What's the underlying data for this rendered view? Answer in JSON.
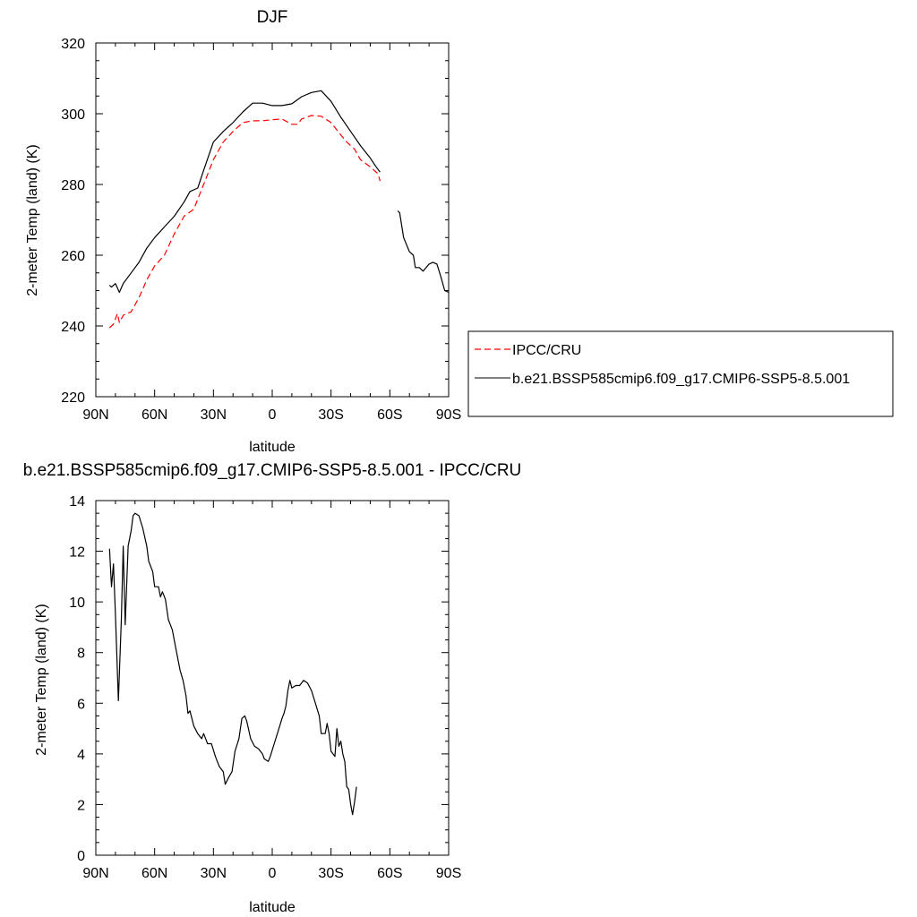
{
  "chart_data": [
    {
      "type": "line",
      "title": "DJF",
      "xlabel": "latitude",
      "ylabel": "2-meter Temp (land) (K)",
      "xlim": [
        90,
        -90
      ],
      "ylim": [
        220,
        320
      ],
      "xticks": [
        90,
        60,
        30,
        0,
        -30,
        -60,
        -90
      ],
      "xtick_labels": [
        "90N",
        "60N",
        "30N",
        "0",
        "30S",
        "60S",
        "90S"
      ],
      "yticks": [
        220,
        240,
        260,
        280,
        300,
        320
      ],
      "ytick_labels": [
        "220",
        "240",
        "260",
        "280",
        "300",
        "320"
      ],
      "legend": "right",
      "series": [
        {
          "name": "IPCC/CRU",
          "color": "#ff0000",
          "dash": "dashed",
          "segments": [
            [
              [
                83,
                239.5
              ],
              [
                81,
                240.5
              ],
              [
                79,
                243.5
              ],
              [
                78,
                241
              ],
              [
                76,
                243
              ],
              [
                72,
                244
              ],
              [
                68,
                248
              ],
              [
                64,
                253
              ],
              [
                60,
                257
              ],
              [
                55,
                260
              ],
              [
                50,
                266
              ],
              [
                45,
                271
              ],
              [
                40,
                273
              ],
              [
                35,
                280
              ],
              [
                30,
                287
              ],
              [
                25,
                292
              ],
              [
                20,
                295
              ],
              [
                15,
                297.5
              ],
              [
                10,
                298
              ],
              [
                5,
                298
              ],
              [
                0,
                298.3
              ],
              [
                -5,
                298.5
              ],
              [
                -10,
                297
              ],
              [
                -13,
                297
              ],
              [
                -15,
                298.5
              ],
              [
                -20,
                299.5
              ],
              [
                -25,
                299.3
              ],
              [
                -30,
                297.5
              ],
              [
                -35,
                294
              ],
              [
                -38,
                292
              ],
              [
                -42,
                290
              ],
              [
                -45,
                287
              ],
              [
                -50,
                285
              ],
              [
                -54,
                283
              ],
              [
                -55,
                281
              ]
            ]
          ]
        },
        {
          "name": "b.e21.BSSP585cmip6.f09_g17.CMIP6-SSP5-8.5.001",
          "color": "#000000",
          "dash": "solid",
          "segments": [
            [
              [
                83,
                251.5
              ],
              [
                82,
                251
              ],
              [
                80,
                252
              ],
              [
                78,
                249.5
              ],
              [
                76,
                252
              ],
              [
                72,
                255
              ],
              [
                68,
                258
              ],
              [
                64,
                262
              ],
              [
                60,
                265
              ],
              [
                55,
                268
              ],
              [
                50,
                271
              ],
              [
                45,
                275
              ],
              [
                42,
                278
              ],
              [
                38,
                279
              ],
              [
                35,
                284
              ],
              [
                30,
                292
              ],
              [
                25,
                295
              ],
              [
                20,
                297.5
              ],
              [
                15,
                300.5
              ],
              [
                10,
                303
              ],
              [
                5,
                303
              ],
              [
                0,
                302.3
              ],
              [
                -5,
                302.3
              ],
              [
                -10,
                302.8
              ],
              [
                -15,
                304.8
              ],
              [
                -20,
                306
              ],
              [
                -25,
                306.5
              ],
              [
                -30,
                303.5
              ],
              [
                -35,
                299
              ],
              [
                -40,
                295
              ],
              [
                -45,
                291
              ],
              [
                -50,
                287.5
              ],
              [
                -53,
                285
              ],
              [
                -55,
                283.5
              ]
            ],
            [
              [
                -64,
                272.5
              ],
              [
                -65,
                272
              ],
              [
                -67,
                265
              ],
              [
                -70,
                261
              ],
              [
                -72,
                260
              ],
              [
                -73,
                256.5
              ],
              [
                -75,
                256.5
              ],
              [
                -77,
                255.5
              ],
              [
                -80,
                257.5
              ],
              [
                -82,
                258
              ],
              [
                -84,
                257.5
              ],
              [
                -86,
                254
              ],
              [
                -88,
                250
              ],
              [
                -90,
                249.5
              ]
            ]
          ]
        }
      ]
    },
    {
      "type": "line",
      "title": "b.e21.BSSP585cmip6.f09_g17.CMIP6-SSP5-8.5.001 - IPCC/CRU",
      "xlabel": "latitude",
      "ylabel": "2-meter Temp (land) (K)",
      "xlim": [
        90,
        -90
      ],
      "ylim": [
        0,
        14
      ],
      "xticks": [
        90,
        60,
        30,
        0,
        -30,
        -60,
        -90
      ],
      "xtick_labels": [
        "90N",
        "60N",
        "30N",
        "0",
        "30S",
        "60S",
        "90S"
      ],
      "yticks": [
        0,
        2,
        4,
        6,
        8,
        10,
        12,
        14
      ],
      "ytick_labels": [
        "0",
        "2",
        "4",
        "6",
        "8",
        "10",
        "12",
        "14"
      ],
      "series": [
        {
          "color": "#000000",
          "dash": "solid",
          "segments": [
            [
              [
                83,
                12.1
              ],
              [
                82,
                10.6
              ],
              [
                81,
                11.5
              ],
              [
                80,
                9.5
              ],
              [
                78.5,
                6.1
              ],
              [
                77,
                9.3
              ],
              [
                76,
                12.2
              ],
              [
                75,
                9.1
              ],
              [
                73.5,
                12.2
              ],
              [
                72,
                12.8
              ],
              [
                71,
                13.4
              ],
              [
                70,
                13.5
              ],
              [
                68,
                13.4
              ],
              [
                66,
                12.9
              ],
              [
                64,
                12.2
              ],
              [
                63,
                11.6
              ],
              [
                61,
                11.2
              ],
              [
                60,
                10.6
              ],
              [
                58,
                10.6
              ],
              [
                57,
                10.2
              ],
              [
                56,
                10.4
              ],
              [
                54.5,
                10.1
              ],
              [
                53,
                9.3
              ],
              [
                51,
                8.9
              ],
              [
                49,
                8.1
              ],
              [
                47,
                7.3
              ],
              [
                45.5,
                6.9
              ],
              [
                44,
                6.3
              ],
              [
                43,
                5.6
              ],
              [
                42,
                5.7
              ],
              [
                40,
                5.1
              ],
              [
                38,
                4.8
              ],
              [
                36,
                4.6
              ],
              [
                35,
                4.8
              ],
              [
                33,
                4.4
              ],
              [
                31,
                4.4
              ],
              [
                29,
                3.9
              ],
              [
                27,
                3.5
              ],
              [
                25,
                3.3
              ],
              [
                24,
                2.8
              ],
              [
                22,
                3.1
              ],
              [
                20.5,
                3.3
              ],
              [
                19,
                4.1
              ],
              [
                17,
                4.6
              ],
              [
                15.5,
                5.4
              ],
              [
                14,
                5.5
              ],
              [
                13,
                5.3
              ],
              [
                11,
                4.6
              ],
              [
                9,
                4.3
              ],
              [
                7,
                4.2
              ],
              [
                5,
                4.0
              ],
              [
                4,
                3.8
              ],
              [
                2,
                3.7
              ],
              [
                1,
                3.9
              ],
              [
                -1,
                4.4
              ],
              [
                -3,
                4.9
              ],
              [
                -5,
                5.4
              ],
              [
                -6,
                5.6
              ],
              [
                -7,
                5.9
              ],
              [
                -8,
                6.5
              ],
              [
                -9,
                6.9
              ],
              [
                -10,
                6.6
              ],
              [
                -12,
                6.7
              ],
              [
                -14,
                6.7
              ],
              [
                -16,
                6.9
              ],
              [
                -18,
                6.8
              ],
              [
                -20,
                6.5
              ],
              [
                -22,
                6.0
              ],
              [
                -24,
                5.5
              ],
              [
                -25,
                4.8
              ],
              [
                -27,
                4.8
              ],
              [
                -28,
                5.2
              ],
              [
                -29,
                4.8
              ],
              [
                -30,
                4.1
              ],
              [
                -32,
                3.9
              ],
              [
                -33,
                5.0
              ],
              [
                -34,
                4.3
              ],
              [
                -35,
                4.5
              ],
              [
                -36,
                4.0
              ],
              [
                -37,
                3.7
              ],
              [
                -38,
                2.7
              ],
              [
                -39,
                2.6
              ],
              [
                -40,
                2.0
              ],
              [
                -41,
                1.6
              ],
              [
                -42,
                2.1
              ],
              [
                -43,
                2.7
              ]
            ]
          ]
        }
      ]
    }
  ]
}
